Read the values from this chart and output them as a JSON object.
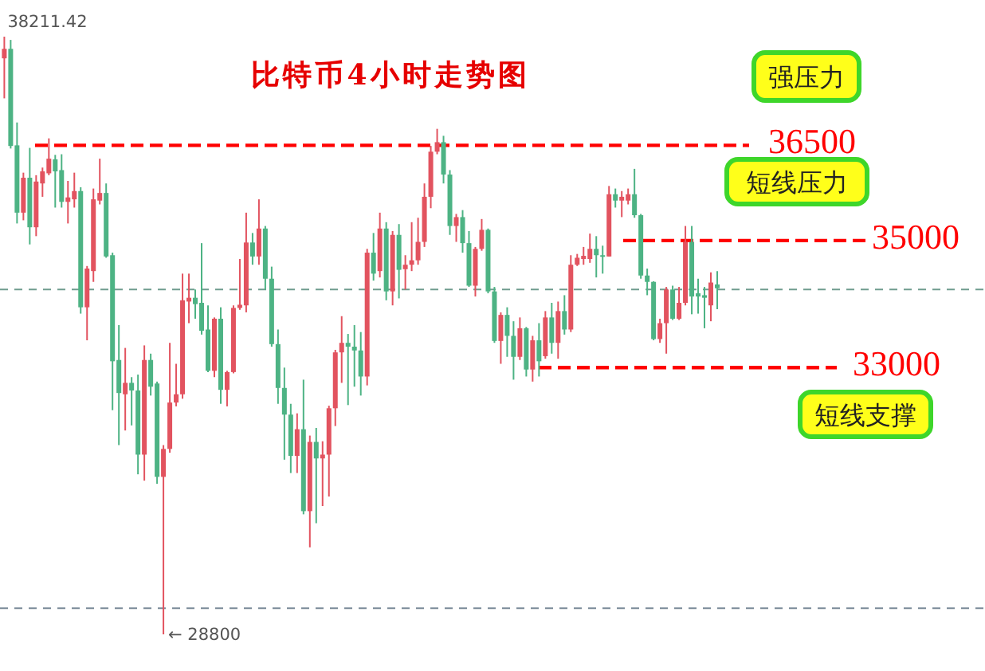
{
  "chart_data": {
    "type": "candlestick",
    "title": "比特币4小时走势图",
    "categories": [
      null,
      null,
      null,
      null,
      null,
      null,
      null,
      null,
      null,
      null,
      null,
      null,
      null,
      null,
      null,
      null,
      null,
      null,
      null,
      null,
      null,
      null,
      null,
      null,
      null,
      null,
      null,
      null,
      null,
      null,
      null,
      null,
      null,
      null,
      null,
      null,
      null,
      null,
      null,
      null,
      null,
      null,
      null,
      null,
      null,
      null,
      null,
      null,
      null,
      null,
      null,
      null,
      null,
      null,
      null,
      null,
      null,
      null,
      null,
      null,
      null,
      null,
      null,
      null,
      null,
      null,
      null,
      null,
      null,
      null,
      null,
      null,
      null,
      null,
      null,
      null,
      null,
      null,
      null,
      null,
      null,
      null,
      null,
      null,
      null,
      null,
      null,
      null,
      null,
      null,
      null,
      null,
      null,
      null,
      null,
      null,
      null,
      null,
      null,
      null,
      null,
      null,
      null,
      null,
      null,
      null,
      null,
      null,
      null,
      null,
      null,
      null,
      null
    ],
    "ohlc": [
      [
        37870,
        38211.42,
        37240,
        38020
      ],
      [
        38020,
        38160,
        36450,
        36490
      ],
      [
        36500,
        36860,
        35270,
        35440
      ],
      [
        35440,
        36070,
        35320,
        35990
      ],
      [
        35990,
        36460,
        34940,
        35210
      ],
      [
        35210,
        36030,
        35070,
        35930
      ],
      [
        35900,
        36150,
        35690,
        36090
      ],
      [
        36060,
        36610,
        36030,
        36290
      ],
      [
        36280,
        36350,
        35520,
        36090
      ],
      [
        36110,
        36360,
        35520,
        35610
      ],
      [
        35610,
        35940,
        35270,
        35680
      ],
      [
        35650,
        36070,
        35520,
        35780
      ],
      [
        35780,
        35840,
        33850,
        33950
      ],
      [
        33950,
        34600,
        33430,
        34560
      ],
      [
        34520,
        35820,
        34350,
        35650
      ],
      [
        35630,
        36290,
        35570,
        35750
      ],
      [
        35750,
        35900,
        34730,
        34750
      ],
      [
        34770,
        34810,
        32330,
        33100
      ],
      [
        33120,
        33670,
        31780,
        32600
      ],
      [
        32580,
        33310,
        32010,
        32760
      ],
      [
        32760,
        32850,
        32090,
        32640
      ],
      [
        32640,
        32890,
        31320,
        31630
      ],
      [
        31630,
        33350,
        31220,
        33120
      ],
      [
        33120,
        33220,
        32560,
        32700
      ],
      [
        32750,
        32780,
        31170,
        31280
      ],
      [
        31280,
        31780,
        28800,
        31720
      ],
      [
        31720,
        33390,
        31660,
        32450
      ],
      [
        32450,
        33060,
        32390,
        32580
      ],
      [
        32580,
        34480,
        32510,
        34060
      ],
      [
        34040,
        34480,
        33700,
        34100
      ],
      [
        34100,
        34230,
        33770,
        34000
      ],
      [
        34020,
        34960,
        33520,
        33580
      ],
      [
        33600,
        33980,
        32930,
        32950
      ],
      [
        32950,
        33790,
        32850,
        33770
      ],
      [
        33770,
        33950,
        32430,
        32650
      ],
      [
        32650,
        32950,
        32390,
        32930
      ],
      [
        32930,
        33980,
        32910,
        33940
      ],
      [
        33940,
        34710,
        33910,
        33990
      ],
      [
        33980,
        35440,
        33870,
        34970
      ],
      [
        34970,
        35120,
        34620,
        34750
      ],
      [
        34750,
        35650,
        34620,
        35190
      ],
      [
        35190,
        35230,
        34230,
        34400
      ],
      [
        34400,
        34590,
        33330,
        33370
      ],
      [
        33370,
        33600,
        32430,
        32680
      ],
      [
        32680,
        33000,
        31550,
        32260
      ],
      [
        32260,
        32430,
        31340,
        31610
      ],
      [
        31610,
        32280,
        31340,
        32030
      ],
      [
        32030,
        32810,
        30690,
        30740
      ],
      [
        30740,
        31930,
        30170,
        31830
      ],
      [
        31830,
        32050,
        30550,
        31570
      ],
      [
        31570,
        31840,
        30820,
        31630
      ],
      [
        31630,
        32400,
        30970,
        32360
      ],
      [
        32360,
        33280,
        32080,
        33240
      ],
      [
        33240,
        33810,
        32760,
        33390
      ],
      [
        33390,
        33530,
        32410,
        33330
      ],
      [
        33330,
        33670,
        32700,
        33270
      ],
      [
        33270,
        33560,
        32560,
        32860
      ],
      [
        32860,
        34870,
        32720,
        34810
      ],
      [
        34810,
        35120,
        34370,
        34480
      ],
      [
        34520,
        35440,
        34420,
        35190
      ],
      [
        35190,
        35290,
        34060,
        34200
      ],
      [
        34200,
        35150,
        33980,
        35090
      ],
      [
        35090,
        35260,
        34090,
        34540
      ],
      [
        34550,
        34770,
        34230,
        34620
      ],
      [
        34620,
        35290,
        34520,
        34690
      ],
      [
        34690,
        35360,
        34620,
        34980
      ],
      [
        34980,
        35900,
        34900,
        35690
      ],
      [
        35690,
        36490,
        35510,
        36400
      ],
      [
        36400,
        36760,
        36360,
        36550
      ],
      [
        36550,
        36650,
        35900,
        36040
      ],
      [
        36040,
        36110,
        35090,
        35230
      ],
      [
        35230,
        35420,
        34980,
        35370
      ],
      [
        35370,
        35480,
        34810,
        34960
      ],
      [
        34960,
        35150,
        34270,
        34290
      ],
      [
        34290,
        34900,
        34120,
        34870
      ],
      [
        34870,
        35340,
        34840,
        35170
      ],
      [
        35170,
        35190,
        34170,
        34200
      ],
      [
        34200,
        34270,
        33390,
        33420
      ],
      [
        33420,
        33870,
        33060,
        33830
      ],
      [
        33830,
        33950,
        33170,
        33500
      ],
      [
        33500,
        33730,
        32810,
        33170
      ],
      [
        33170,
        33790,
        33120,
        33620
      ],
      [
        33620,
        33640,
        32860,
        32970
      ],
      [
        32970,
        33500,
        32780,
        33430
      ],
      [
        33430,
        33700,
        32860,
        33100
      ],
      [
        33180,
        33890,
        33140,
        33790
      ],
      [
        33790,
        34020,
        33220,
        33390
      ],
      [
        33390,
        34040,
        33140,
        33890
      ],
      [
        33890,
        34140,
        33520,
        33600
      ],
      [
        33600,
        34770,
        33560,
        34620
      ],
      [
        34620,
        34790,
        34600,
        34730
      ],
      [
        34710,
        34900,
        34620,
        34760
      ],
      [
        34710,
        35110,
        34650,
        34870
      ],
      [
        34870,
        35070,
        34420,
        34770
      ],
      [
        34770,
        34920,
        34480,
        34750
      ],
      [
        34750,
        35860,
        34750,
        35730
      ],
      [
        35730,
        35820,
        35520,
        35630
      ],
      [
        35630,
        35780,
        35370,
        35690
      ],
      [
        35630,
        35820,
        35570,
        35730
      ],
      [
        35730,
        36130,
        35360,
        35400
      ],
      [
        35400,
        35420,
        34400,
        34450
      ],
      [
        34450,
        34560,
        34140,
        34350
      ],
      [
        34350,
        34360,
        33430,
        33450
      ],
      [
        33450,
        33770,
        33390,
        33700
      ],
      [
        33700,
        34270,
        33220,
        34230
      ],
      [
        34230,
        34290,
        33750,
        33770
      ],
      [
        33770,
        34270,
        33750,
        34020
      ],
      [
        34020,
        35230,
        33980,
        34980
      ],
      [
        34980,
        35230,
        33840,
        34120
      ],
      [
        34170,
        34400,
        33850,
        34120
      ],
      [
        34140,
        34270,
        33620,
        34100
      ],
      [
        33980,
        34500,
        33730,
        34340
      ],
      [
        34310,
        34520,
        33920,
        34250
      ]
    ],
    "colors": [
      "#e2535f",
      "#4db384",
      "#4db384",
      "#e2535f",
      "#4db384",
      "#e2535f",
      "#e2535f",
      "#e2535f",
      "#4db384",
      "#4db384",
      "#e2535f",
      "#e2535f",
      "#4db384",
      "#e2535f",
      "#e2535f",
      "#e2535f",
      "#4db384",
      "#4db384",
      "#4db384",
      "#e2535f",
      "#4db384",
      "#4db384",
      "#e2535f",
      "#4db384",
      "#4db384",
      "#e2535f",
      "#e2535f",
      "#e2535f",
      "#e2535f",
      "#e2535f",
      "#4db384",
      "#4db384",
      "#4db384",
      "#e2535f",
      "#4db384",
      "#e2535f",
      "#e2535f",
      "#e2535f",
      "#e2535f",
      "#4db384",
      "#e2535f",
      "#4db384",
      "#4db384",
      "#4db384",
      "#4db384",
      "#4db384",
      "#e2535f",
      "#4db384",
      "#e2535f",
      "#4db384",
      "#e2535f",
      "#e2535f",
      "#e2535f",
      "#e2535f",
      "#4db384",
      "#4db384",
      "#4db384",
      "#e2535f",
      "#4db384",
      "#e2535f",
      "#4db384",
      "#e2535f",
      "#4db384",
      "#e2535f",
      "#e2535f",
      "#e2535f",
      "#e2535f",
      "#e2535f",
      "#e2535f",
      "#4db384",
      "#4db384",
      "#e2535f",
      "#4db384",
      "#4db384",
      "#e2535f",
      "#e2535f",
      "#4db384",
      "#4db384",
      "#e2535f",
      "#4db384",
      "#4db384",
      "#e2535f",
      "#4db384",
      "#e2535f",
      "#4db384",
      "#e2535f",
      "#4db384",
      "#e2535f",
      "#4db384",
      "#e2535f",
      "#e2535f",
      "#e2535f",
      "#e2535f",
      "#4db384",
      "#4db384",
      "#e2535f",
      "#4db384",
      "#e2535f",
      "#e2535f",
      "#4db384",
      "#4db384",
      "#4db384",
      "#4db384",
      "#e2535f",
      "#e2535f",
      "#4db384",
      "#e2535f",
      "#e2535f",
      "#4db384",
      "#4db384",
      "#4db384",
      "#e2535f",
      "#4db384"
    ],
    "ref_lines": [
      {
        "axis": "y",
        "value": 36500,
        "label": "36500",
        "color": "#ff0000",
        "line_style": "dashed"
      },
      {
        "axis": "y",
        "value": 35000,
        "label": "35000",
        "color": "#ff0000",
        "line_style": "dashed"
      },
      {
        "axis": "y",
        "value": 33000,
        "label": "33000",
        "color": "#ff0000",
        "line_style": "dashed"
      },
      {
        "axis": "y",
        "value": 34230,
        "color": "#6f9c8e",
        "line_style": "dashed"
      },
      {
        "axis": "y",
        "value": 29210,
        "color": "#7b8a99",
        "line_style": "dashed"
      }
    ],
    "annotations": [
      "38211.42",
      "← 28800",
      "强压力",
      "短线压力",
      "短线支撑"
    ]
  }
}
